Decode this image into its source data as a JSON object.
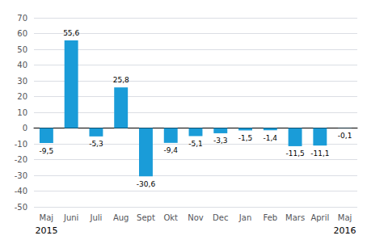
{
  "chart_data": {
    "type": "bar",
    "categories": [
      "Maj",
      "Juni",
      "Juli",
      "Aug",
      "Sept",
      "Okt",
      "Nov",
      "Dec",
      "Jan",
      "Feb",
      "Mars",
      "April",
      "Maj"
    ],
    "values": [
      -9.5,
      55.6,
      -5.3,
      25.8,
      -30.6,
      -9.4,
      -5.1,
      -3.3,
      -1.5,
      -1.4,
      -11.5,
      -11.1,
      -0.1
    ],
    "value_labels": [
      "-9,5",
      "55,6",
      "-5,3",
      "25,8",
      "-30,6",
      "-9,4",
      "-5,1",
      "-3,3",
      "-1,5",
      "-1,4",
      "-11,5",
      "-11,1",
      "-0,1"
    ],
    "data_labels": true,
    "color": "#1a9cd8",
    "ylim": [
      -50,
      70
    ],
    "yticks": [
      -50,
      -40,
      -30,
      -20,
      -10,
      0,
      10,
      20,
      30,
      40,
      50,
      60,
      70
    ],
    "grid": true,
    "annotations": [
      {
        "text": "2015",
        "x": 0
      },
      {
        "text": "2016",
        "x": 12
      }
    ]
  }
}
